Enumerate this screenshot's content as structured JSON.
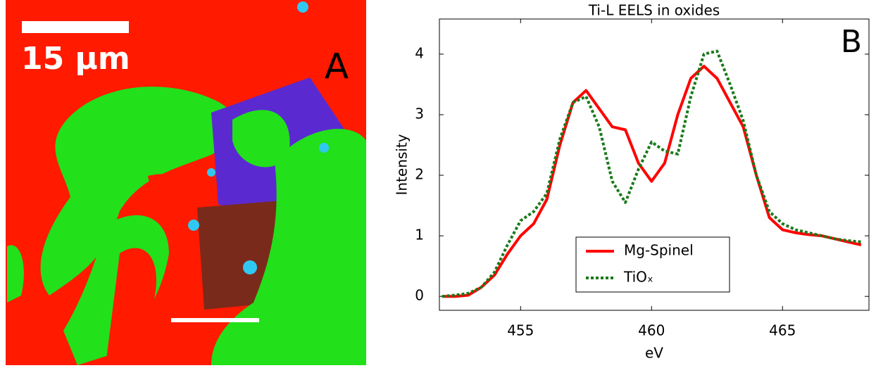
{
  "panel_a": {
    "scale_label": "15 μm",
    "label": "A"
  },
  "chart_data": {
    "type": "line",
    "title": "Ti-L EELS in oxides",
    "panel_label": "B",
    "x_label": "eV",
    "y_label": "Intensity",
    "x": [
      452,
      452.5,
      453,
      453.5,
      454,
      454.5,
      455,
      455.5,
      456,
      456.5,
      457,
      457.5,
      458,
      458.5,
      459,
      459.5,
      460,
      460.5,
      461,
      461.5,
      462,
      462.5,
      463,
      463.5,
      464,
      464.5,
      465,
      465.5,
      466,
      466.5,
      467,
      467.5,
      468
    ],
    "series": [
      {
        "name": "Mg-Spinel",
        "color": "#ff0000",
        "dash": "solid",
        "values": [
          0.0,
          0.0,
          0.02,
          0.15,
          0.35,
          0.7,
          1.0,
          1.2,
          1.6,
          2.5,
          3.2,
          3.4,
          3.1,
          2.8,
          2.75,
          2.2,
          1.9,
          2.2,
          3.0,
          3.6,
          3.8,
          3.6,
          3.2,
          2.8,
          2.0,
          1.3,
          1.1,
          1.05,
          1.02,
          1.0,
          0.95,
          0.9,
          0.85
        ]
      },
      {
        "name": "TiOₓ",
        "color": "#1a7a1a",
        "dash": "dotted",
        "values": [
          0.0,
          0.02,
          0.05,
          0.15,
          0.4,
          0.85,
          1.25,
          1.4,
          1.7,
          2.6,
          3.2,
          3.3,
          2.8,
          1.9,
          1.55,
          2.1,
          2.55,
          2.4,
          2.35,
          3.3,
          4.0,
          4.05,
          3.5,
          2.9,
          2.0,
          1.4,
          1.2,
          1.1,
          1.05,
          1.0,
          0.95,
          0.92,
          0.9
        ]
      }
    ],
    "xlim": [
      451.9,
      468.3
    ],
    "ylim": [
      -0.23,
      4.58
    ],
    "xticks": [
      455,
      460,
      465
    ],
    "yticks": [
      0,
      1,
      2,
      3,
      4
    ],
    "grid": false
  }
}
